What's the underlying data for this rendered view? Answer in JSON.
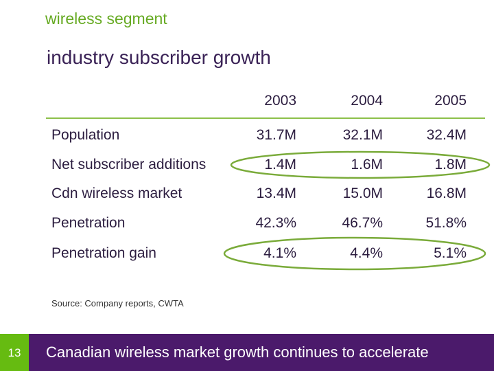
{
  "section": "wireless segment",
  "subtitle": "industry subscriber growth",
  "table": {
    "years": [
      "2003",
      "2004",
      "2005"
    ],
    "rows": [
      {
        "label": "Population",
        "values": [
          "31.7M",
          "32.1M",
          "32.4M"
        ],
        "highlighted": false
      },
      {
        "label": "Net subscriber additions",
        "values": [
          "1.4M",
          "1.6M",
          "1.8M"
        ],
        "highlighted": true
      },
      {
        "label": "Cdn wireless market",
        "values": [
          "13.4M",
          "15.0M",
          "16.8M"
        ],
        "highlighted": false
      },
      {
        "label": "Penetration",
        "values": [
          "42.3%",
          "46.7%",
          "51.8%"
        ],
        "highlighted": false
      },
      {
        "label": "Penetration gain",
        "values": [
          "4.1%",
          "4.4%",
          "5.1%"
        ],
        "highlighted": true
      }
    ]
  },
  "source": "Source: Company reports, CWTA",
  "footer": {
    "page": "13",
    "message": "Canadian wireless market growth continues to accelerate"
  },
  "colors": {
    "accent_green": "#66bb11",
    "purple": "#4b1a6b",
    "highlight": "#7aab3a"
  }
}
